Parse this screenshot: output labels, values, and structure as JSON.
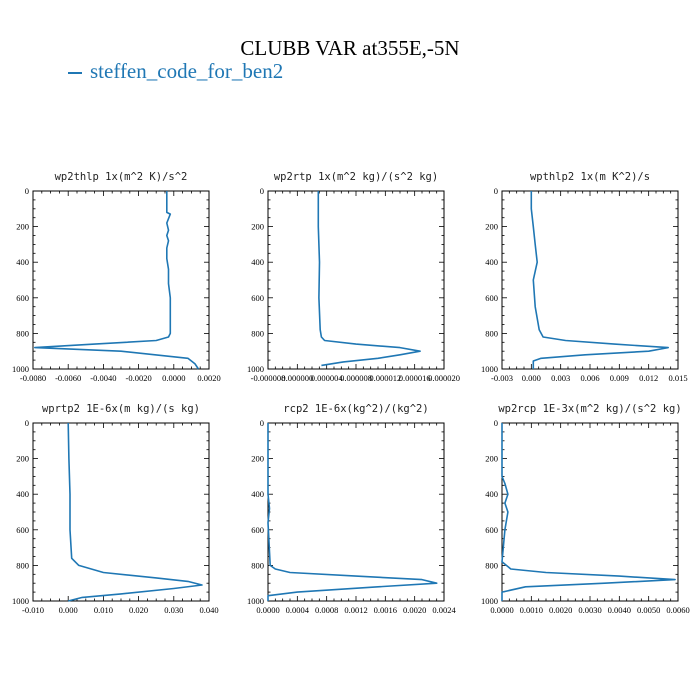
{
  "title": "CLUBB VAR at355E,-5N",
  "legend": {
    "label": "steffen_code_for_ben2",
    "color": "#1f77b4"
  },
  "chart_data": [
    {
      "type": "line",
      "title": "wp2thlp  1x(m^2 K)/s^2",
      "xlim": [
        -0.008,
        0.002
      ],
      "ylim": [
        1000,
        0
      ],
      "xticks": [
        "-0.0080",
        "-0.0060",
        "-0.0040",
        "-0.0020",
        "0.0000",
        "0.0020"
      ],
      "yticks": [
        "0",
        "200",
        "400",
        "600",
        "800",
        "1000"
      ],
      "series": [
        {
          "color": "#1f77b4",
          "x": [
            -0.0004,
            -0.0004,
            -0.0002,
            -0.0004,
            -0.0003,
            -0.0004,
            -0.0003,
            -0.0004,
            -0.0004,
            -0.0003,
            -0.0003,
            -0.0002,
            -0.0002,
            -0.0002,
            -0.0002,
            -0.0003,
            -0.001,
            -0.0045,
            -0.0079,
            -0.003,
            0.0008,
            0.0012,
            0.0014
          ],
          "y": [
            0,
            120,
            130,
            180,
            220,
            250,
            280,
            320,
            380,
            440,
            520,
            600,
            700,
            780,
            800,
            820,
            840,
            860,
            880,
            900,
            940,
            970,
            1000
          ]
        }
      ]
    },
    {
      "type": "line",
      "title": "wp2rtp  1x(m^2 kg)/(s^2 kg)",
      "xlim": [
        -8e-06,
        2e-05
      ],
      "ylim": [
        1000,
        0
      ],
      "xticks": [
        "-0.000008",
        "0.000000",
        "0.000004",
        "0.000008",
        "0.000012",
        "0.000016",
        "0.000020"
      ],
      "yticks": [
        "0",
        "200",
        "400",
        "600",
        "800",
        "1000"
      ],
      "series": [
        {
          "color": "#1f77b4",
          "x": [
            0.0,
            0.0,
            2e-07,
            1e-07,
            3e-07,
            5e-07,
            1e-06,
            6e-06,
            1.3e-05,
            1.62e-05,
            1.3e-05,
            9.5e-06,
            4e-06,
            5e-07
          ],
          "y": [
            0,
            200,
            400,
            600,
            780,
            820,
            840,
            860,
            880,
            900,
            920,
            940,
            960,
            980
          ]
        }
      ]
    },
    {
      "type": "line",
      "title": "wpthlp2  1x(m K^2)/s",
      "xlim": [
        -0.003,
        0.015
      ],
      "ylim": [
        1000,
        0
      ],
      "xticks": [
        "-0.003",
        "0.000",
        "0.003",
        "0.006",
        "0.009",
        "0.012",
        "0.015"
      ],
      "yticks": [
        "0",
        "200",
        "400",
        "600",
        "800",
        "1000"
      ],
      "series": [
        {
          "color": "#1f77b4",
          "x": [
            0.0,
            0.0,
            0.0002,
            0.0004,
            0.0006,
            0.0002,
            0.0004,
            0.0008,
            0.0012,
            0.0035,
            0.0085,
            0.014,
            0.012,
            0.0055,
            0.001,
            0.0002,
            0.0002
          ],
          "y": [
            0,
            100,
            200,
            300,
            400,
            500,
            650,
            780,
            820,
            840,
            860,
            880,
            900,
            920,
            940,
            955,
            1000
          ]
        }
      ]
    },
    {
      "type": "line",
      "title": "wprtp2  1E-6x(m kg)/(s kg)",
      "xlim": [
        -0.01,
        0.04
      ],
      "ylim": [
        1000,
        0
      ],
      "xticks": [
        "-0.010",
        "0.000",
        "0.010",
        "0.020",
        "0.030",
        "0.040"
      ],
      "yticks": [
        "0",
        "200",
        "400",
        "600",
        "800",
        "1000"
      ],
      "series": [
        {
          "color": "#1f77b4",
          "x": [
            0.0,
            0.0002,
            0.0005,
            0.0005,
            0.001,
            0.003,
            0.01,
            0.025,
            0.034,
            0.038,
            0.03,
            0.015,
            0.004,
            0.0
          ],
          "y": [
            0,
            200,
            400,
            600,
            760,
            800,
            840,
            870,
            890,
            910,
            930,
            960,
            980,
            1000
          ]
        }
      ]
    },
    {
      "type": "line",
      "title": "rcp2  1E-6x(kg^2)/(kg^2)",
      "xlim": [
        0.0,
        0.0024
      ],
      "ylim": [
        1000,
        0
      ],
      "xticks": [
        "0.0000",
        "0.0004",
        "0.0008",
        "0.0012",
        "0.0016",
        "0.0020",
        "0.0024"
      ],
      "yticks": [
        "0",
        "200",
        "400",
        "600",
        "800",
        "1000"
      ],
      "series": [
        {
          "color": "#1f77b4",
          "x": [
            0.0,
            0.0,
            2e-05,
            0.0,
            3e-05,
            0.0001,
            0.0003,
            0.0012,
            0.0021,
            0.0023,
            0.0015,
            0.0004,
            0.0,
            0.0
          ],
          "y": [
            0,
            400,
            480,
            560,
            800,
            820,
            840,
            860,
            880,
            900,
            920,
            950,
            970,
            1000
          ]
        }
      ]
    },
    {
      "type": "line",
      "title": "wp2rcp  1E-3x(m^2 kg)/(s^2 kg)",
      "xlim": [
        0.0,
        0.006
      ],
      "ylim": [
        1000,
        0
      ],
      "xticks": [
        "0.0000",
        "0.0010",
        "0.0020",
        "0.0030",
        "0.0040",
        "0.0050",
        "0.0060"
      ],
      "yticks": [
        "0",
        "200",
        "400",
        "600",
        "800",
        "1000"
      ],
      "series": [
        {
          "color": "#1f77b4",
          "x": [
            0.0,
            0.0,
            0.0001,
            0.0002,
            0.0001,
            0.0002,
            0.0001,
            0.0,
            0.0003,
            0.0015,
            0.004,
            0.0059,
            0.0035,
            0.0008,
            0.0,
            0.0
          ],
          "y": [
            0,
            300,
            340,
            400,
            450,
            500,
            600,
            780,
            820,
            840,
            860,
            880,
            900,
            920,
            950,
            1000
          ]
        }
      ]
    }
  ]
}
